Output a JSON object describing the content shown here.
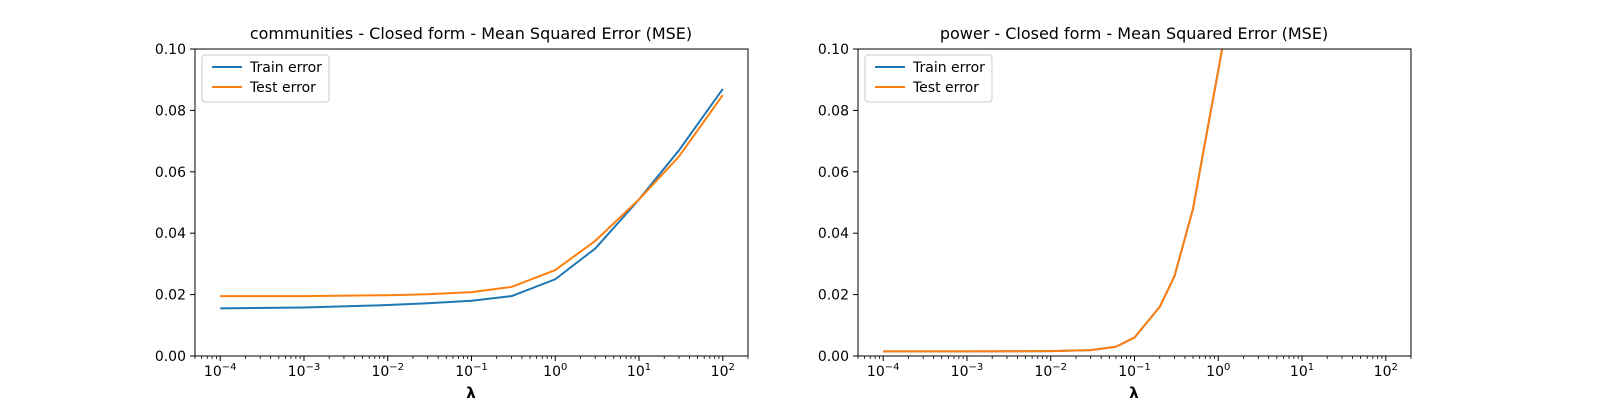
{
  "chart_data": [
    {
      "type": "line",
      "title": "communities - Closed form - Mean Squared Error (MSE)",
      "xlabel": "λ",
      "ylabel": "",
      "xscale": "log",
      "xlim": [
        5e-05,
        200
      ],
      "ylim": [
        0.0,
        0.1
      ],
      "xticks": [
        {
          "value": 0.0001,
          "base": "10",
          "exp": "−4"
        },
        {
          "value": 0.001,
          "base": "10",
          "exp": "−3"
        },
        {
          "value": 0.01,
          "base": "10",
          "exp": "−2"
        },
        {
          "value": 0.1,
          "base": "10",
          "exp": "−1"
        },
        {
          "value": 1,
          "base": "10",
          "exp": "0"
        },
        {
          "value": 10,
          "base": "10",
          "exp": "1"
        },
        {
          "value": 100,
          "base": "10",
          "exp": "2"
        }
      ],
      "yticks": [
        {
          "value": 0.0,
          "label": "0.00"
        },
        {
          "value": 0.02,
          "label": "0.02"
        },
        {
          "value": 0.04,
          "label": "0.04"
        },
        {
          "value": 0.06,
          "label": "0.06"
        },
        {
          "value": 0.08,
          "label": "0.08"
        },
        {
          "value": 0.1,
          "label": "0.10"
        }
      ],
      "grid": false,
      "legend_position": "top-left",
      "series": [
        {
          "name": "Train error",
          "color": "#1f77b4",
          "x": [
            0.0001,
            0.001,
            0.01,
            0.03,
            0.1,
            0.3,
            1,
            3,
            10,
            30,
            100
          ],
          "y": [
            0.0155,
            0.0158,
            0.0166,
            0.0172,
            0.018,
            0.0195,
            0.025,
            0.035,
            0.051,
            0.067,
            0.087
          ]
        },
        {
          "name": "Test error",
          "color": "#ff7f0e",
          "x": [
            0.0001,
            0.001,
            0.01,
            0.03,
            0.1,
            0.3,
            1,
            3,
            10,
            30,
            100
          ],
          "y": [
            0.0195,
            0.0195,
            0.0198,
            0.0201,
            0.0208,
            0.0225,
            0.028,
            0.0375,
            0.051,
            0.065,
            0.085
          ]
        }
      ]
    },
    {
      "type": "line",
      "title": "power - Closed form - Mean Squared Error (MSE)",
      "xlabel": "λ",
      "ylabel": "",
      "xscale": "log",
      "xlim": [
        5e-05,
        200
      ],
      "ylim": [
        0.0,
        0.1
      ],
      "xticks": [
        {
          "value": 0.0001,
          "base": "10",
          "exp": "−4"
        },
        {
          "value": 0.001,
          "base": "10",
          "exp": "−3"
        },
        {
          "value": 0.01,
          "base": "10",
          "exp": "−2"
        },
        {
          "value": 0.1,
          "base": "10",
          "exp": "−1"
        },
        {
          "value": 1,
          "base": "10",
          "exp": "0"
        },
        {
          "value": 10,
          "base": "10",
          "exp": "1"
        },
        {
          "value": 100,
          "base": "10",
          "exp": "2"
        }
      ],
      "yticks": [
        {
          "value": 0.0,
          "label": "0.00"
        },
        {
          "value": 0.02,
          "label": "0.02"
        },
        {
          "value": 0.04,
          "label": "0.04"
        },
        {
          "value": 0.06,
          "label": "0.06"
        },
        {
          "value": 0.08,
          "label": "0.08"
        },
        {
          "value": 0.1,
          "label": "0.10"
        }
      ],
      "grid": false,
      "legend_position": "top-left",
      "series": [
        {
          "name": "Train error",
          "color": "#1f77b4",
          "x": [
            0.0001,
            0.001,
            0.01,
            0.03,
            0.06,
            0.1,
            0.2,
            0.3,
            0.5,
            0.7,
            1.0,
            1.2
          ],
          "y": [
            0.0015,
            0.0015,
            0.0016,
            0.0019,
            0.003,
            0.006,
            0.016,
            0.026,
            0.048,
            0.07,
            0.093,
            0.105
          ]
        },
        {
          "name": "Test error",
          "color": "#ff7f0e",
          "x": [
            0.0001,
            0.001,
            0.01,
            0.03,
            0.06,
            0.1,
            0.2,
            0.3,
            0.5,
            0.7,
            1.0,
            1.2
          ],
          "y": [
            0.0015,
            0.0015,
            0.0016,
            0.0019,
            0.003,
            0.006,
            0.016,
            0.026,
            0.048,
            0.07,
            0.093,
            0.105
          ]
        }
      ]
    }
  ]
}
